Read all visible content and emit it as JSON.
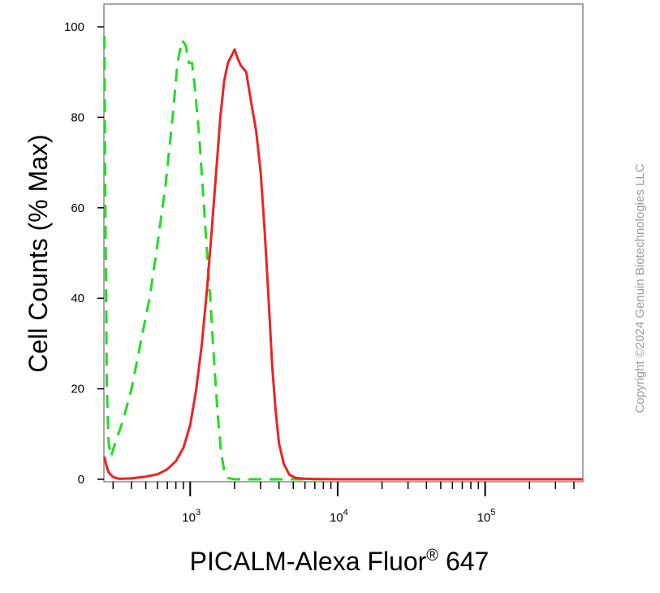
{
  "chart_data": {
    "type": "line",
    "xlabel": "PICALM-Alexa Fluor",
    "xlabel_superscript": "®",
    "xlabel_suffix": " 647",
    "ylabel": "Cell Counts (% Max)",
    "x_scale": "log",
    "xlim": [
      260,
      460000
    ],
    "ylim": [
      0,
      100
    ],
    "y_ticks": [
      0,
      20,
      40,
      60,
      80,
      100
    ],
    "y_tick_labels": [
      "0",
      "20",
      "40",
      "60",
      "80",
      "100"
    ],
    "x_ticks": [
      1000,
      10000,
      100000
    ],
    "x_tick_labels": [
      {
        "base": "10",
        "exp": "3"
      },
      {
        "base": "10",
        "exp": "4"
      },
      {
        "base": "10",
        "exp": "5"
      }
    ],
    "grid": false,
    "legend": "none",
    "copyright": "Copyright ©2024 Genuin Biotechnologies LLC",
    "series": [
      {
        "color": "#22dd22",
        "style": "dashed",
        "points": [
          [
            262,
            98
          ],
          [
            266,
            60
          ],
          [
            272,
            20
          ],
          [
            280,
            8
          ],
          [
            290,
            5
          ],
          [
            310,
            8
          ],
          [
            350,
            13
          ],
          [
            400,
            20
          ],
          [
            460,
            30
          ],
          [
            530,
            40
          ],
          [
            600,
            52
          ],
          [
            680,
            65
          ],
          [
            760,
            80
          ],
          [
            820,
            92
          ],
          [
            880,
            97
          ],
          [
            930,
            96
          ],
          [
            980,
            92
          ],
          [
            1030,
            92
          ],
          [
            1080,
            86
          ],
          [
            1150,
            76
          ],
          [
            1230,
            62
          ],
          [
            1300,
            50
          ],
          [
            1380,
            38
          ],
          [
            1460,
            25
          ],
          [
            1540,
            14
          ],
          [
            1620,
            6
          ],
          [
            1700,
            2
          ],
          [
            1800,
            0.3
          ],
          [
            2000,
            0
          ],
          [
            4000,
            0
          ],
          [
            50000,
            0
          ],
          [
            460000,
            0
          ]
        ]
      },
      {
        "color": "#ee2222",
        "style": "solid",
        "points": [
          [
            262,
            5
          ],
          [
            268,
            3.5
          ],
          [
            280,
            1.5
          ],
          [
            300,
            0.5
          ],
          [
            330,
            0.1
          ],
          [
            400,
            0.2
          ],
          [
            500,
            0.6
          ],
          [
            600,
            1.1
          ],
          [
            700,
            2.2
          ],
          [
            800,
            4
          ],
          [
            900,
            7
          ],
          [
            1000,
            12
          ],
          [
            1100,
            20
          ],
          [
            1200,
            30
          ],
          [
            1300,
            42
          ],
          [
            1400,
            55
          ],
          [
            1500,
            68
          ],
          [
            1600,
            80
          ],
          [
            1700,
            88
          ],
          [
            1800,
            92
          ],
          [
            1900,
            93.5
          ],
          [
            2000,
            95
          ],
          [
            2100,
            93
          ],
          [
            2200,
            91.5
          ],
          [
            2400,
            90
          ],
          [
            2600,
            83
          ],
          [
            2800,
            77
          ],
          [
            3000,
            68
          ],
          [
            3200,
            55
          ],
          [
            3400,
            40
          ],
          [
            3600,
            25
          ],
          [
            3800,
            15
          ],
          [
            4000,
            8
          ],
          [
            4300,
            3.5
          ],
          [
            4700,
            1
          ],
          [
            5200,
            0.3
          ],
          [
            6000,
            0.1
          ],
          [
            10000,
            0
          ],
          [
            100000,
            0
          ],
          [
            460000,
            0
          ]
        ]
      }
    ]
  }
}
